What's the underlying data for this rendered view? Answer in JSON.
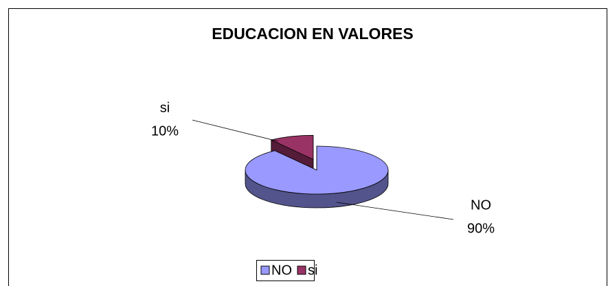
{
  "chart_data": {
    "type": "pie",
    "title": "EDUCACION EN VALORES",
    "categories": [
      "NO",
      "si"
    ],
    "values": [
      90,
      10
    ],
    "value_labels": [
      "90%",
      "10%"
    ],
    "colors": [
      "#9999ff",
      "#993366"
    ],
    "legend": "bottom"
  }
}
